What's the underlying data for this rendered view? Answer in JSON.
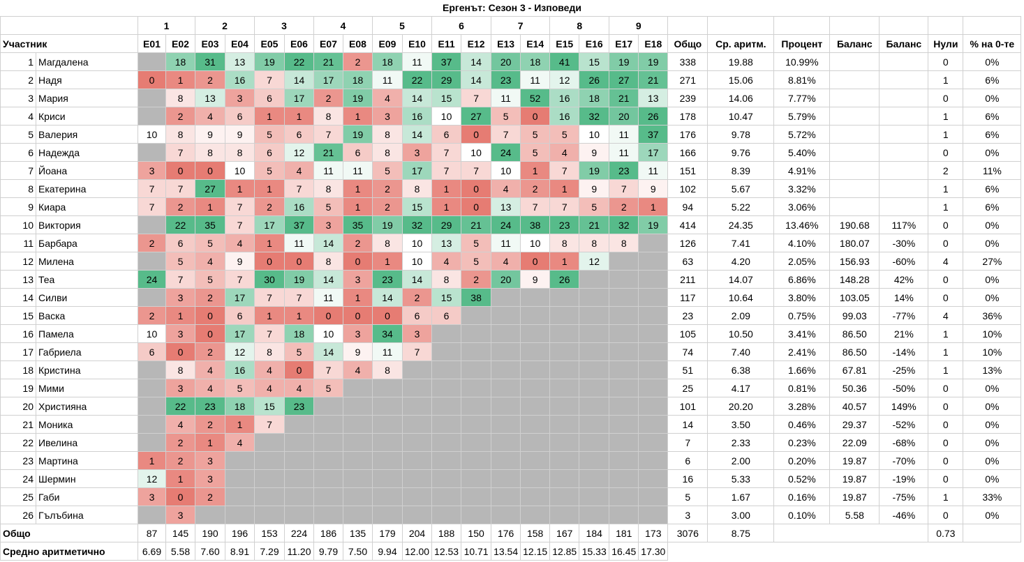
{
  "title": "Ергенът: Сезон 3 - Изповеди",
  "groups": [
    "1",
    "2",
    "3",
    "4",
    "5",
    "6",
    "7",
    "8",
    "9"
  ],
  "headers": {
    "participant": "Участник",
    "episodes": [
      "E01",
      "E02",
      "E03",
      "E04",
      "E05",
      "E06",
      "E07",
      "E08",
      "E09",
      "E10",
      "E11",
      "E12",
      "E13",
      "E14",
      "E15",
      "E16",
      "E17",
      "E18"
    ],
    "stats": [
      "Общо",
      "Ср. аритм.",
      "Процент",
      "Баланс",
      "Баланс",
      "Нули",
      "% на 0-те"
    ]
  },
  "rows": [
    {
      "n": "1",
      "name": "Магдалена",
      "eps": [
        null,
        "18",
        "31",
        "13",
        "19",
        "22",
        "21",
        "2",
        "18",
        "11",
        "37",
        "14",
        "20",
        "18",
        "41",
        "15",
        "19",
        "19"
      ],
      "stats": [
        "338",
        "19.88",
        "10.99%",
        "",
        "",
        "0",
        "0%"
      ]
    },
    {
      "n": "2",
      "name": "Надя",
      "eps": [
        "0",
        "1",
        "2",
        "16",
        "7",
        "14",
        "17",
        "18",
        "11",
        "22",
        "29",
        "14",
        "23",
        "11",
        "12",
        "26",
        "27",
        "21"
      ],
      "stats": [
        "271",
        "15.06",
        "8.81%",
        "",
        "",
        "1",
        "6%"
      ]
    },
    {
      "n": "3",
      "name": "Мария",
      "eps": [
        null,
        "8",
        "13",
        "3",
        "6",
        "17",
        "2",
        "19",
        "4",
        "14",
        "15",
        "7",
        "11",
        "52",
        "16",
        "18",
        "21",
        "13"
      ],
      "stats": [
        "239",
        "14.06",
        "7.77%",
        "",
        "",
        "0",
        "0%"
      ]
    },
    {
      "n": "4",
      "name": "Криси",
      "eps": [
        null,
        "2",
        "4",
        "6",
        "1",
        "1",
        "8",
        "1",
        "3",
        "16",
        "10",
        "27",
        "5",
        "0",
        "16",
        "32",
        "20",
        "26"
      ],
      "stats": [
        "178",
        "10.47",
        "5.79%",
        "",
        "",
        "1",
        "6%"
      ]
    },
    {
      "n": "5",
      "name": "Валерия",
      "eps": [
        "10",
        "8",
        "9",
        "9",
        "5",
        "6",
        "7",
        "19",
        "8",
        "14",
        "6",
        "0",
        "7",
        "5",
        "5",
        "10",
        "11",
        "37"
      ],
      "stats": [
        "176",
        "9.78",
        "5.72%",
        "",
        "",
        "1",
        "6%"
      ]
    },
    {
      "n": "6",
      "name": "Надежда",
      "eps": [
        null,
        "7",
        "8",
        "8",
        "6",
        "12",
        "21",
        "6",
        "8",
        "3",
        "7",
        "10",
        "24",
        "5",
        "4",
        "9",
        "11",
        "17"
      ],
      "stats": [
        "166",
        "9.76",
        "5.40%",
        "",
        "",
        "0",
        "0%"
      ]
    },
    {
      "n": "7",
      "name": "Йоана",
      "eps": [
        "3",
        "0",
        "0",
        "10",
        "5",
        "4",
        "11",
        "11",
        "5",
        "17",
        "7",
        "7",
        "10",
        "1",
        "7",
        "19",
        "23",
        "11"
      ],
      "stats": [
        "151",
        "8.39",
        "4.91%",
        "",
        "",
        "2",
        "11%"
      ]
    },
    {
      "n": "8",
      "name": "Екатерина",
      "eps": [
        "7",
        "7",
        "27",
        "1",
        "1",
        "7",
        "8",
        "1",
        "2",
        "8",
        "1",
        "0",
        "4",
        "2",
        "1",
        "9",
        "7",
        "9"
      ],
      "stats": [
        "102",
        "5.67",
        "3.32%",
        "",
        "",
        "1",
        "6%"
      ]
    },
    {
      "n": "9",
      "name": "Киара",
      "eps": [
        "7",
        "2",
        "1",
        "7",
        "2",
        "16",
        "5",
        "1",
        "2",
        "15",
        "1",
        "0",
        "13",
        "7",
        "7",
        "5",
        "2",
        "1"
      ],
      "stats": [
        "94",
        "5.22",
        "3.06%",
        "",
        "",
        "1",
        "6%"
      ]
    },
    {
      "n": "10",
      "name": "Виктория",
      "eps": [
        null,
        "22",
        "35",
        "7",
        "17",
        "37",
        "3",
        "35",
        "19",
        "32",
        "29",
        "21",
        "24",
        "38",
        "23",
        "21",
        "32",
        "19"
      ],
      "stats": [
        "414",
        "24.35",
        "13.46%",
        "190.68",
        "117%",
        "0",
        "0%"
      ]
    },
    {
      "n": "11",
      "name": "Барбара",
      "eps": [
        "2",
        "6",
        "5",
        "4",
        "1",
        "11",
        "14",
        "2",
        "8",
        "10",
        "13",
        "5",
        "11",
        "10",
        "8",
        "8",
        "8",
        null
      ],
      "stats": [
        "126",
        "7.41",
        "4.10%",
        "180.07",
        "-30%",
        "0",
        "0%"
      ]
    },
    {
      "n": "12",
      "name": "Милена",
      "eps": [
        null,
        "5",
        "4",
        "9",
        "0",
        "0",
        "8",
        "0",
        "1",
        "10",
        "4",
        "5",
        "4",
        "0",
        "1",
        "12",
        null,
        null
      ],
      "stats": [
        "63",
        "4.20",
        "2.05%",
        "156.93",
        "-60%",
        "4",
        "27%"
      ]
    },
    {
      "n": "13",
      "name": "Теа",
      "eps": [
        "24",
        "7",
        "5",
        "7",
        "30",
        "19",
        "14",
        "3",
        "23",
        "14",
        "8",
        "2",
        "20",
        "9",
        "26",
        null,
        null,
        null
      ],
      "stats": [
        "211",
        "14.07",
        "6.86%",
        "148.28",
        "42%",
        "0",
        "0%"
      ]
    },
    {
      "n": "14",
      "name": "Силви",
      "eps": [
        null,
        "3",
        "2",
        "17",
        "7",
        "7",
        "11",
        "1",
        "14",
        "2",
        "15",
        "38",
        null,
        null,
        null,
        null,
        null,
        null
      ],
      "stats": [
        "117",
        "10.64",
        "3.80%",
        "103.05",
        "14%",
        "0",
        "0%"
      ]
    },
    {
      "n": "15",
      "name": "Васка",
      "eps": [
        "2",
        "1",
        "0",
        "6",
        "1",
        "1",
        "0",
        "0",
        "0",
        "6",
        "6",
        null,
        null,
        null,
        null,
        null,
        null,
        null
      ],
      "stats": [
        "23",
        "2.09",
        "0.75%",
        "99.03",
        "-77%",
        "4",
        "36%"
      ]
    },
    {
      "n": "16",
      "name": "Памела",
      "eps": [
        "10",
        "3",
        "0",
        "17",
        "7",
        "18",
        "10",
        "3",
        "34",
        "3",
        null,
        null,
        null,
        null,
        null,
        null,
        null,
        null
      ],
      "stats": [
        "105",
        "10.50",
        "3.41%",
        "86.50",
        "21%",
        "1",
        "10%"
      ]
    },
    {
      "n": "17",
      "name": "Габриела",
      "eps": [
        "6",
        "0",
        "2",
        "12",
        "8",
        "5",
        "14",
        "9",
        "11",
        "7",
        null,
        null,
        null,
        null,
        null,
        null,
        null,
        null
      ],
      "stats": [
        "74",
        "7.40",
        "2.41%",
        "86.50",
        "-14%",
        "1",
        "10%"
      ]
    },
    {
      "n": "18",
      "name": "Кристина",
      "eps": [
        null,
        "8",
        "4",
        "16",
        "4",
        "0",
        "7",
        "4",
        "8",
        null,
        null,
        null,
        null,
        null,
        null,
        null,
        null,
        null
      ],
      "stats": [
        "51",
        "6.38",
        "1.66%",
        "67.81",
        "-25%",
        "1",
        "13%"
      ]
    },
    {
      "n": "19",
      "name": "Мими",
      "eps": [
        null,
        "3",
        "4",
        "5",
        "4",
        "4",
        "5",
        null,
        null,
        null,
        null,
        null,
        null,
        null,
        null,
        null,
        null,
        null
      ],
      "stats": [
        "25",
        "4.17",
        "0.81%",
        "50.36",
        "-50%",
        "0",
        "0%"
      ]
    },
    {
      "n": "20",
      "name": "Християна",
      "eps": [
        null,
        "22",
        "23",
        "18",
        "15",
        "23",
        null,
        null,
        null,
        null,
        null,
        null,
        null,
        null,
        null,
        null,
        null,
        null
      ],
      "stats": [
        "101",
        "20.20",
        "3.28%",
        "40.57",
        "149%",
        "0",
        "0%"
      ]
    },
    {
      "n": "21",
      "name": "Моника",
      "eps": [
        null,
        "4",
        "2",
        "1",
        "7",
        null,
        null,
        null,
        null,
        null,
        null,
        null,
        null,
        null,
        null,
        null,
        null,
        null
      ],
      "stats": [
        "14",
        "3.50",
        "0.46%",
        "29.37",
        "-52%",
        "0",
        "0%"
      ]
    },
    {
      "n": "22",
      "name": "Ивелина",
      "eps": [
        null,
        "2",
        "1",
        "4",
        null,
        null,
        null,
        null,
        null,
        null,
        null,
        null,
        null,
        null,
        null,
        null,
        null,
        null
      ],
      "stats": [
        "7",
        "2.33",
        "0.23%",
        "22.09",
        "-68%",
        "0",
        "0%"
      ]
    },
    {
      "n": "23",
      "name": "Мартина",
      "eps": [
        "1",
        "2",
        "3",
        null,
        null,
        null,
        null,
        null,
        null,
        null,
        null,
        null,
        null,
        null,
        null,
        null,
        null,
        null
      ],
      "stats": [
        "6",
        "2.00",
        "0.20%",
        "19.87",
        "-70%",
        "0",
        "0%"
      ]
    },
    {
      "n": "24",
      "name": "Шермин",
      "eps": [
        "12",
        "1",
        "3",
        null,
        null,
        null,
        null,
        null,
        null,
        null,
        null,
        null,
        null,
        null,
        null,
        null,
        null,
        null
      ],
      "stats": [
        "16",
        "5.33",
        "0.52%",
        "19.87",
        "-19%",
        "0",
        "0%"
      ]
    },
    {
      "n": "25",
      "name": "Габи",
      "eps": [
        "3",
        "0",
        "2",
        null,
        null,
        null,
        null,
        null,
        null,
        null,
        null,
        null,
        null,
        null,
        null,
        null,
        null,
        null
      ],
      "stats": [
        "5",
        "1.67",
        "0.16%",
        "19.87",
        "-75%",
        "1",
        "33%"
      ]
    },
    {
      "n": "26",
      "name": "Гълъбина",
      "eps": [
        null,
        "3",
        null,
        null,
        null,
        null,
        null,
        null,
        null,
        null,
        null,
        null,
        null,
        null,
        null,
        null,
        null,
        null
      ],
      "stats": [
        "3",
        "3.00",
        "0.10%",
        "5.58",
        "-46%",
        "0",
        "0%"
      ]
    }
  ],
  "footer": {
    "total_label": "Общо",
    "totals": [
      "87",
      "145",
      "190",
      "196",
      "153",
      "224",
      "186",
      "135",
      "179",
      "204",
      "188",
      "150",
      "176",
      "158",
      "167",
      "184",
      "181",
      "173"
    ],
    "grand_total": "3076",
    "grand_avg": "8.75",
    "zeros_avg": "0.73",
    "avg_label": "Средно аритметично",
    "avgs": [
      "6.69",
      "5.58",
      "7.60",
      "8.91",
      "7.29",
      "11.20",
      "9.79",
      "7.50",
      "9.94",
      "12.00",
      "12.53",
      "10.71",
      "13.54",
      "12.15",
      "12.85",
      "15.33",
      "16.45",
      "17.30"
    ]
  },
  "colors": {
    "na": "#b7b7b7",
    "low": "#e67c73",
    "mid": "#ffffff",
    "high": "#57bb8a"
  }
}
